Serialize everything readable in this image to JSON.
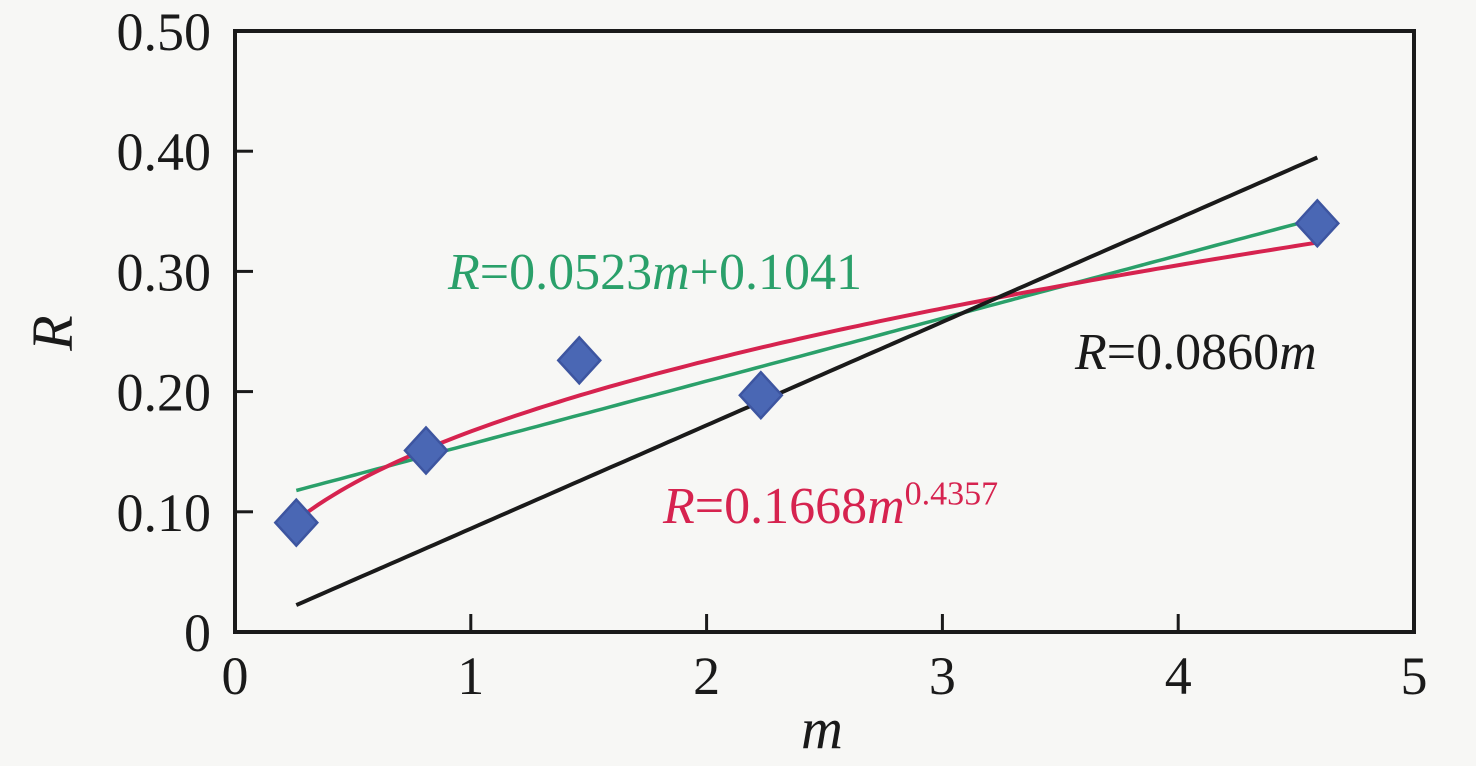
{
  "figure": {
    "background": "#f7f7f5",
    "axis_color": "#1a1a1a"
  },
  "chart_data": {
    "type": "scatter",
    "title": "",
    "xlabel": "m",
    "ylabel": "R",
    "xlim": [
      0,
      5
    ],
    "ylim": [
      0,
      0.5
    ],
    "grid": false,
    "legend": "none (equations annotated inline)",
    "x_ticks": [
      0,
      1,
      2,
      3,
      4,
      5
    ],
    "x_tick_labels": [
      "0",
      "1",
      "2",
      "3",
      "4",
      "5"
    ],
    "y_ticks": [
      0,
      0.1,
      0.2,
      0.3,
      0.4,
      0.5
    ],
    "y_tick_labels": [
      "0",
      "0.10",
      "0.20",
      "0.30",
      "0.40",
      "0.50"
    ],
    "points": [
      {
        "m": 0.26,
        "R": 0.091
      },
      {
        "m": 0.81,
        "R": 0.151
      },
      {
        "m": 1.46,
        "R": 0.226
      },
      {
        "m": 2.23,
        "R": 0.197
      },
      {
        "m": 4.59,
        "R": 0.34
      }
    ],
    "marker": {
      "shape": "diamond",
      "fill": "#4a67b4",
      "edge": "#3d55a0"
    },
    "fits": [
      {
        "name": "linear-fit",
        "label": "R=0.0523m+0.1041",
        "type": "linear",
        "slope": 0.0523,
        "intercept": 0.1041,
        "color": "#2aa06a",
        "x_range": [
          0.26,
          4.59
        ],
        "width": 3.5
      },
      {
        "name": "power-fit",
        "label": "R=0.1668m^0.4357",
        "type": "power",
        "coef": 0.1668,
        "exp": 0.4357,
        "color": "#d6234f",
        "x_range": [
          0.26,
          4.59
        ],
        "width": 4
      },
      {
        "name": "proportional-fit",
        "label": "R=0.0860m",
        "type": "linear",
        "slope": 0.086,
        "intercept": 0,
        "color": "#1a1a1a",
        "x_range": [
          0.26,
          4.59
        ],
        "width": 4
      }
    ]
  },
  "equations": {
    "green": {
      "lhs": "R",
      "body": "=0.0523",
      "var": "m",
      "tail": "+0.1041",
      "color": "#2aa06a"
    },
    "red": {
      "lhs": "R",
      "body": "=0.1668",
      "var": "m",
      "sup": "0.4357",
      "color": "#d6234f"
    },
    "black": {
      "lhs": "R",
      "body": "=0.0860",
      "var": "m",
      "color": "#1a1a1a"
    }
  },
  "axes": {
    "x_label": "m",
    "y_label": "R"
  }
}
